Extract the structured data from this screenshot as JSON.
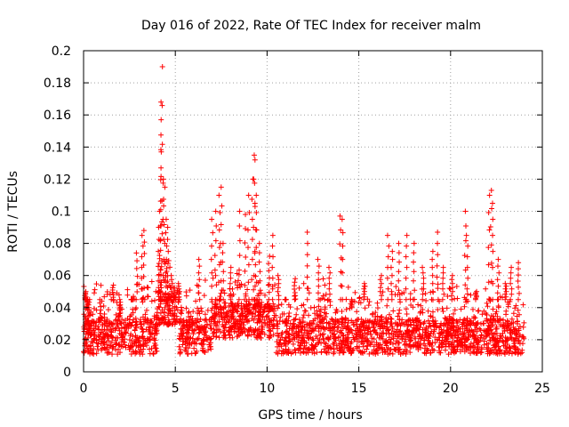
{
  "chart_data": {
    "type": "scatter",
    "title": "Day 016 of 2022, Rate Of TEC Index for receiver malm",
    "xlabel": "GPS time / hours",
    "ylabel": "ROTI / TECUs",
    "xlim": [
      0,
      25
    ],
    "ylim": [
      0,
      0.2
    ],
    "xticks": [
      "0",
      "5",
      "10",
      "15",
      "20",
      "25"
    ],
    "yticks": [
      "0",
      "0.02",
      "0.04",
      "0.06",
      "0.08",
      "0.1",
      "0.12",
      "0.14",
      "0.16",
      "0.18",
      "0.2"
    ],
    "grid": true,
    "marker": "plus",
    "color": "#ff0000",
    "series": [
      {
        "x": [
          0.1,
          0.15,
          0.2,
          0.3,
          0.9,
          1.6,
          2.0,
          2.6,
          2.9,
          3.2,
          3.3,
          4.1,
          4.15,
          4.2,
          4.22,
          4.25,
          4.3,
          4.35,
          4.4,
          4.5,
          4.6,
          4.8,
          5.2,
          6.3,
          7.0,
          7.2,
          7.4,
          7.5,
          7.6,
          8.0,
          8.5,
          8.8,
          9.0,
          9.2,
          9.3,
          9.35,
          9.4,
          9.6,
          10.1,
          10.3,
          10.6,
          11.0,
          11.5,
          12.2,
          12.8,
          13.4,
          14.0,
          14.1,
          14.6,
          15.3,
          16.2,
          16.6,
          16.8,
          17.2,
          17.6,
          18.0,
          18.5,
          19.0,
          19.3,
          19.6,
          20.1,
          20.8,
          20.9,
          21.4,
          22.1,
          22.2,
          22.3,
          22.6,
          23.0,
          23.3,
          23.7
        ],
        "y": [
          0.05,
          0.045,
          0.04,
          0.035,
          0.032,
          0.054,
          0.035,
          0.045,
          0.074,
          0.085,
          0.088,
          0.09,
          0.1,
          0.137,
          0.157,
          0.168,
          0.19,
          0.12,
          0.115,
          0.095,
          0.09,
          0.06,
          0.055,
          0.07,
          0.095,
          0.1,
          0.11,
          0.115,
          0.08,
          0.065,
          0.1,
          0.098,
          0.11,
          0.12,
          0.135,
          0.132,
          0.11,
          0.08,
          0.072,
          0.085,
          0.06,
          0.045,
          0.058,
          0.087,
          0.07,
          0.065,
          0.097,
          0.095,
          0.04,
          0.055,
          0.06,
          0.085,
          0.075,
          0.08,
          0.085,
          0.08,
          0.065,
          0.075,
          0.087,
          0.065,
          0.06,
          0.1,
          0.085,
          0.05,
          0.11,
          0.113,
          0.105,
          0.07,
          0.055,
          0.065,
          0.068
        ]
      }
    ]
  }
}
